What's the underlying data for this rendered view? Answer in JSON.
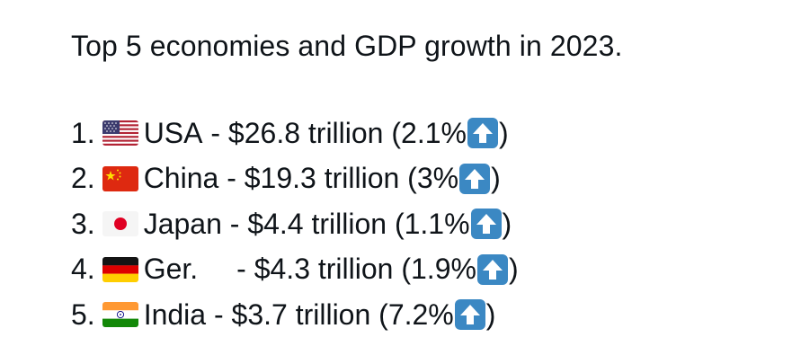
{
  "post": {
    "title": "Top 5 economies and GDP growth in 2023.",
    "items": [
      {
        "rank": "1.",
        "flag_icon": "us-flag-icon",
        "country": "USA",
        "gdp": " - $26.8 trillion (",
        "growth": "2.1%",
        "close": ")"
      },
      {
        "rank": "2.",
        "flag_icon": "china-flag-icon",
        "country": "China",
        "gdp": " - $19.3 trillion (",
        "growth": "3%",
        "close": ")"
      },
      {
        "rank": "3.",
        "flag_icon": "japan-flag-icon",
        "country": "Japan",
        "gdp": " - $4.4 trillion (",
        "growth": "1.1%",
        "close": ")"
      },
      {
        "rank": "4.",
        "flag_icon": "germany-flag-icon",
        "country": "Ger.",
        "gdp": "- $4.3 trillion (",
        "growth": "1.9%",
        "close": ")"
      },
      {
        "rank": "5.",
        "flag_icon": "india-flag-icon",
        "country": "India",
        "gdp": " - $3.7 trillion (",
        "growth": "7.2%",
        "close": ")"
      }
    ],
    "up_arrow_icon": "up-arrow-icon",
    "colors": {
      "text": "#0f1419",
      "arrow_bg": "#3b88c3"
    }
  }
}
